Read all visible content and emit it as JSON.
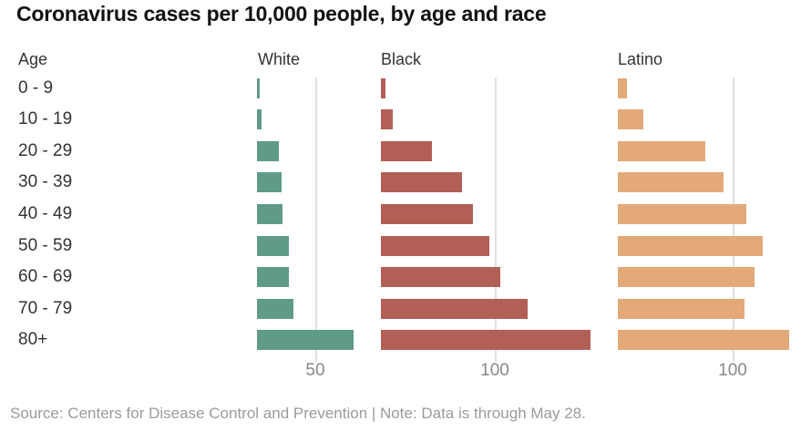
{
  "title": "Coronavirus cases per 10,000 people, by age and race",
  "age_column_header": "Age",
  "source_note": "Source: Centers for Disease Control and Prevention | Note: Data is through May 28.",
  "colors": {
    "title_text": "#121212",
    "label_text": "#333333",
    "tick_text": "#888888",
    "gridline": "#e0e0e0",
    "source_text": "#9b9b9b",
    "background": "#ffffff",
    "white_series": "#5f9b85",
    "black_series": "#b25f56",
    "latino_series": "#e3a979"
  },
  "chart_data": {
    "type": "bar",
    "orientation": "horizontal",
    "title": "Coronavirus cases per 10,000 people, by age and race",
    "ylabel": "Age",
    "xlabel": "",
    "grid": "one vertical gridline per panel at the labeled tick, drawn behind bars",
    "legend_position": "panel headers above each bar group",
    "categories": [
      "0 - 9",
      "10 - 19",
      "20 - 29",
      "30 - 39",
      "40 - 49",
      "50 - 59",
      "60 - 69",
      "70 - 79",
      "80+"
    ],
    "series": [
      {
        "name": "White",
        "color": "#5f9b85",
        "axis_tick_label": "50",
        "axis_tick_value": 50,
        "xlim": [
          0,
          86
        ],
        "values": [
          2,
          4,
          19,
          21,
          22,
          27,
          27,
          31,
          83
        ]
      },
      {
        "name": "Black",
        "color": "#b25f56",
        "axis_tick_label": "100",
        "axis_tick_value": 100,
        "xlim": [
          0,
          190
        ],
        "values": [
          4,
          10,
          45,
          71,
          81,
          95,
          105,
          129,
          184
        ]
      },
      {
        "name": "Latino",
        "color": "#e3a979",
        "axis_tick_label": "100",
        "axis_tick_value": 100,
        "xlim": [
          0,
          160
        ],
        "values": [
          8,
          22,
          76,
          92,
          112,
          126,
          119,
          110,
          149
        ]
      }
    ]
  }
}
